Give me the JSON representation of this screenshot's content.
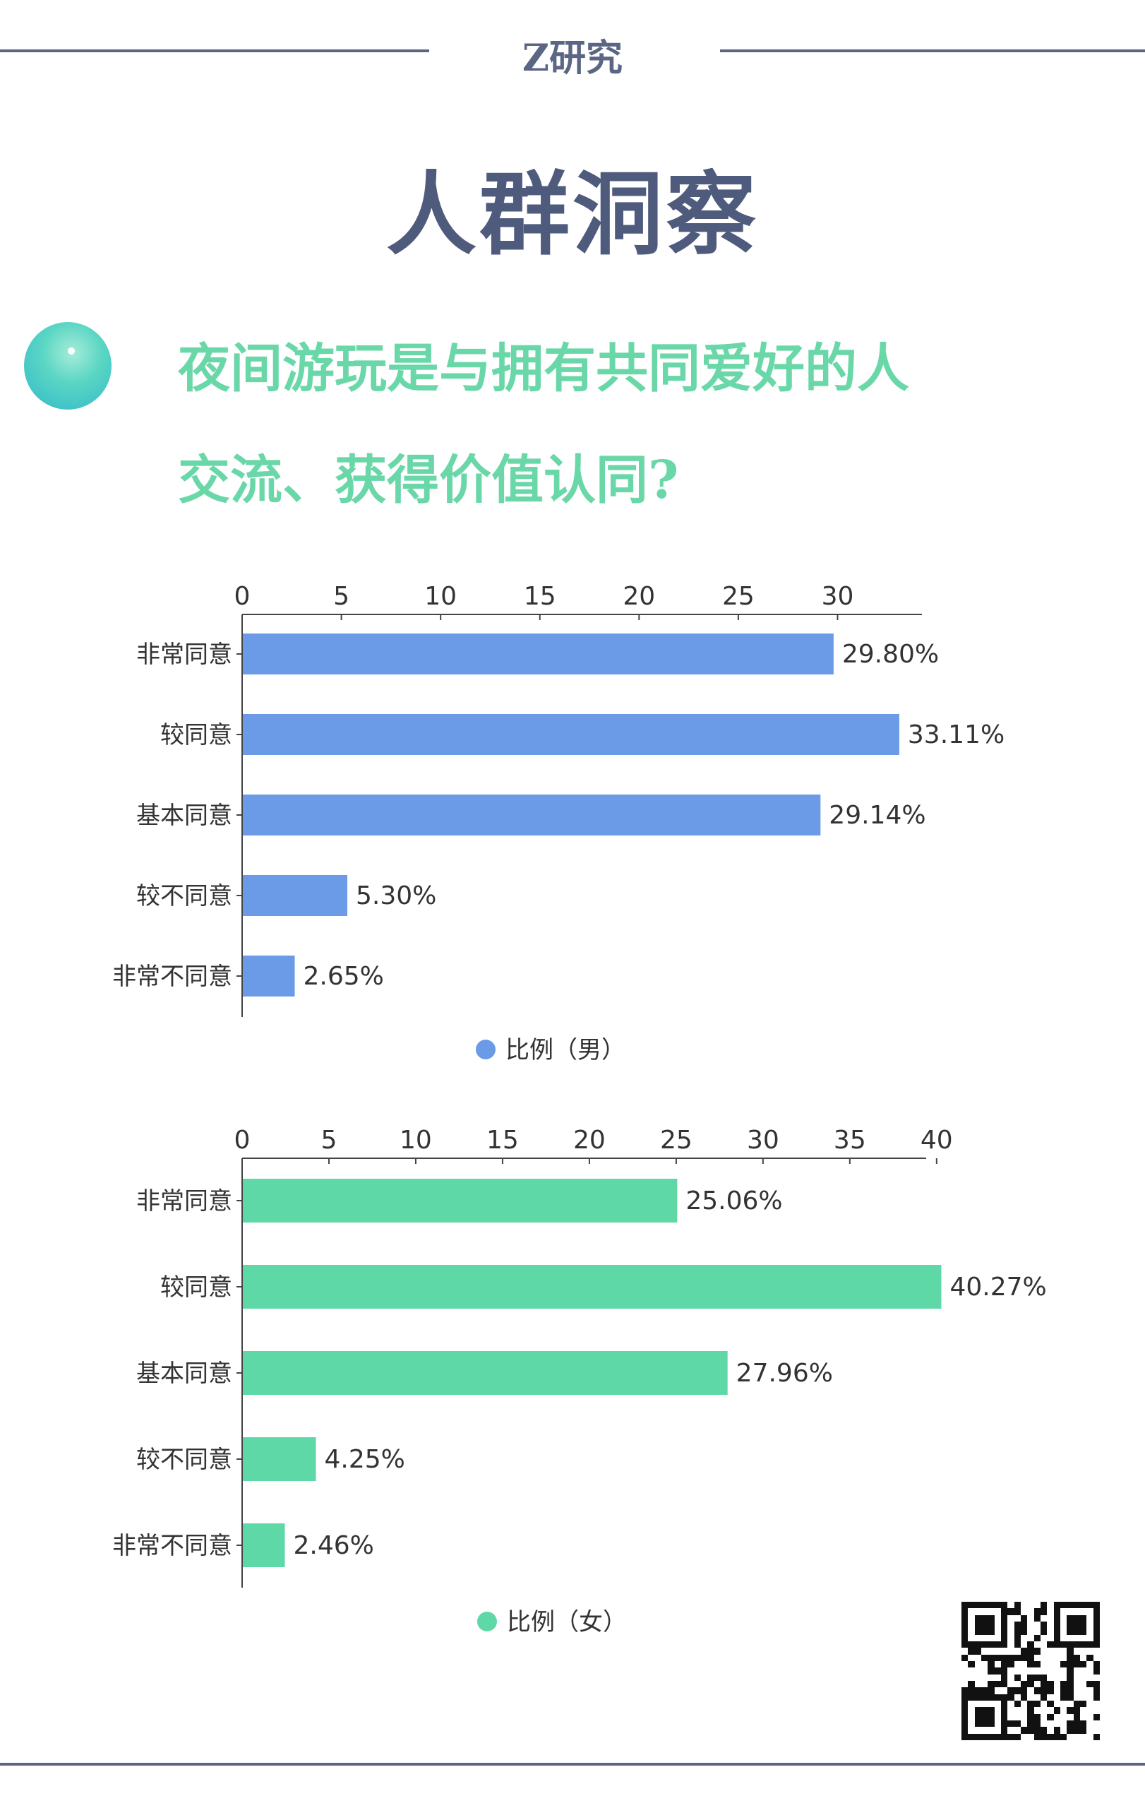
{
  "header": {
    "brand": "Z研究",
    "title": "人群洞察"
  },
  "question": {
    "line1": "夜间游玩是与拥有共同爱好的人",
    "line2": "交流、获得价值认同?"
  },
  "colors": {
    "accent_dark": "#5b6684",
    "question_green": "#6ad7a8",
    "male_bar": "#6b9be6",
    "female_bar": "#5fd8a8"
  },
  "chart_data": [
    {
      "type": "bar",
      "orientation": "horizontal",
      "categories": [
        "非常同意",
        "较同意",
        "基本同意",
        "较不同意",
        "非常不同意"
      ],
      "series": [
        {
          "name": "比例（男）",
          "values": [
            29.8,
            33.11,
            29.14,
            5.3,
            2.65
          ],
          "labels": [
            "29.80%",
            "33.11%",
            "29.14%",
            "5.30%",
            "2.65%"
          ],
          "color": "#6b9be6"
        }
      ],
      "xlim": [
        0,
        34.5
      ],
      "xticks": [
        0,
        5,
        10,
        15,
        20,
        25,
        30
      ],
      "x_axis_position": "top",
      "legend": "bottom-center",
      "grid": false
    },
    {
      "type": "bar",
      "orientation": "horizontal",
      "categories": [
        "非常同意",
        "较同意",
        "基本同意",
        "较不同意",
        "非常不同意"
      ],
      "series": [
        {
          "name": "比例（女）",
          "values": [
            25.06,
            40.27,
            27.96,
            4.25,
            2.46
          ],
          "labels": [
            "25.06%",
            "40.27%",
            "27.96%",
            "4.25%",
            "2.46%"
          ],
          "color": "#5fd8a8"
        }
      ],
      "xlim": [
        0,
        42
      ],
      "xticks": [
        0,
        5,
        10,
        15,
        20,
        25,
        30,
        35,
        40
      ],
      "x_axis_position": "top",
      "legend": "bottom-center",
      "grid": false
    }
  ],
  "qr": {
    "icon": "qr-code"
  }
}
